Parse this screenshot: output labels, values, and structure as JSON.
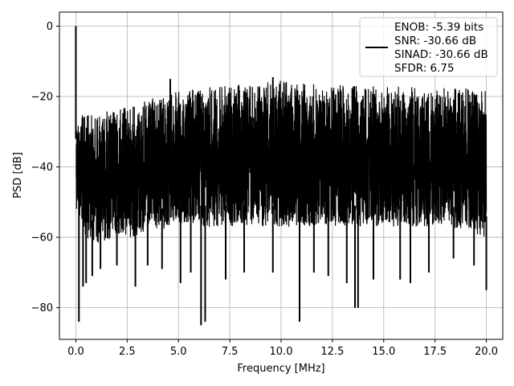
{
  "chart_data": {
    "type": "line",
    "xlabel": "Frequency [MHz]",
    "ylabel": "PSD [dB]",
    "xlim": [
      -0.8,
      20.8
    ],
    "ylim": [
      -89,
      4
    ],
    "xticks": [
      "0.0",
      "2.5",
      "5.0",
      "7.5",
      "10.0",
      "12.5",
      "15.0",
      "17.5",
      "20.0"
    ],
    "xtick_values": [
      0,
      2.5,
      5,
      7.5,
      10,
      12.5,
      15,
      17.5,
      20
    ],
    "yticks": [
      "0",
      "−20",
      "−40",
      "−60",
      "−80"
    ],
    "ytick_values": [
      0,
      -20,
      -40,
      -60,
      -80
    ],
    "grid": true,
    "legend_position": "top-right",
    "legend_lines": [
      "ENOB: -5.39 bits",
      "SNR: -30.66 dB",
      "SINAD: -30.66 dB",
      "SFDR: 6.75"
    ],
    "series_color": "#000000",
    "series": [
      {
        "upper_envelope": {
          "x": [
            0.05,
            0.3,
            0.7,
            1.0,
            2.0,
            3.0,
            4.0,
            5.0,
            6.0,
            7.0,
            8.0,
            9.0,
            10.0,
            11.0,
            12.0,
            13.0,
            14.0,
            15.0,
            16.0,
            17.0,
            18.0,
            19.0,
            20.0
          ],
          "y": [
            -24,
            -25,
            -25,
            -24.5,
            -23.5,
            -22,
            -20,
            -18.5,
            -17.5,
            -17,
            -16.5,
            -16,
            -15.5,
            -16,
            -16.5,
            -16.5,
            -17,
            -17,
            -17,
            -17.5,
            -17.5,
            -17.5,
            -18
          ]
        },
        "lower_envelope": {
          "x": [
            0.05,
            0.5,
            1.0,
            2.0,
            3.0,
            4.0,
            5.0,
            6.0,
            7.0,
            8.0,
            9.0,
            10.0,
            11.0,
            12.0,
            13.0,
            14.0,
            15.0,
            16.0,
            17.0,
            18.0,
            19.0,
            20.0
          ],
          "y": [
            -52,
            -60,
            -62,
            -60,
            -60,
            -58,
            -57,
            -57,
            -57,
            -57,
            -57,
            -57,
            -57,
            -57,
            -57,
            -57,
            -57,
            -57,
            -57,
            -57,
            -58,
            -60
          ]
        },
        "spikes": [
          {
            "x": 0.0,
            "y": 0
          },
          {
            "x": 0.15,
            "y": -84
          },
          {
            "x": 0.35,
            "y": -74
          },
          {
            "x": 0.5,
            "y": -73
          },
          {
            "x": 0.8,
            "y": -71
          },
          {
            "x": 1.2,
            "y": -69
          },
          {
            "x": 2.0,
            "y": -68
          },
          {
            "x": 2.9,
            "y": -74
          },
          {
            "x": 3.5,
            "y": -68
          },
          {
            "x": 4.2,
            "y": -69
          },
          {
            "x": 5.1,
            "y": -73
          },
          {
            "x": 5.6,
            "y": -70
          },
          {
            "x": 6.1,
            "y": -85
          },
          {
            "x": 6.3,
            "y": -84
          },
          {
            "x": 7.3,
            "y": -72
          },
          {
            "x": 8.2,
            "y": -70
          },
          {
            "x": 9.6,
            "y": -70
          },
          {
            "x": 10.9,
            "y": -84
          },
          {
            "x": 11.6,
            "y": -70
          },
          {
            "x": 12.3,
            "y": -71
          },
          {
            "x": 13.2,
            "y": -73
          },
          {
            "x": 13.6,
            "y": -80
          },
          {
            "x": 13.75,
            "y": -80
          },
          {
            "x": 14.5,
            "y": -72
          },
          {
            "x": 15.8,
            "y": -72
          },
          {
            "x": 16.3,
            "y": -73
          },
          {
            "x": 17.2,
            "y": -70
          },
          {
            "x": 18.4,
            "y": -66
          },
          {
            "x": 19.4,
            "y": -68
          },
          {
            "x": 20.0,
            "y": -75
          },
          {
            "x": 4.6,
            "y": -15
          },
          {
            "x": 9.6,
            "y": -14.5
          }
        ]
      }
    ]
  }
}
